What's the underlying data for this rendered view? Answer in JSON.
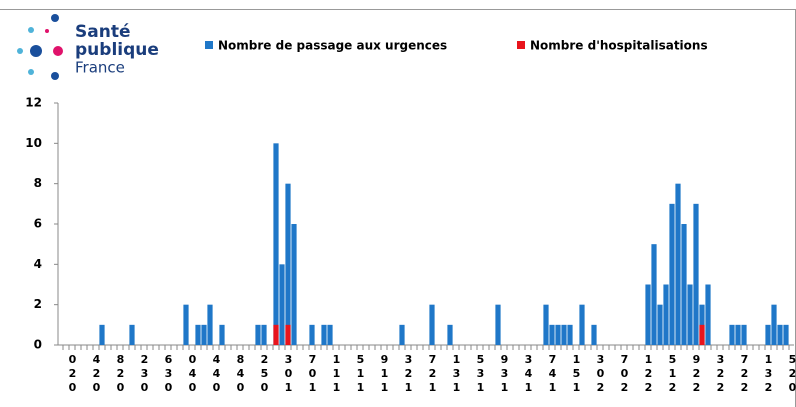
{
  "logo": {
    "line1": "Santé",
    "line2": "publique",
    "line3": "France"
  },
  "chart_data": {
    "type": "bar",
    "overlay": true,
    "categories": [
      null,
      "020",
      null,
      null,
      null,
      "420",
      null,
      null,
      null,
      "820",
      null,
      null,
      null,
      "230",
      null,
      null,
      null,
      "630",
      null,
      null,
      null,
      "040",
      null,
      null,
      null,
      "440",
      null,
      null,
      null,
      "840",
      null,
      null,
      null,
      "250",
      null,
      null,
      null,
      "301",
      null,
      null,
      null,
      "701",
      null,
      null,
      null,
      "111",
      null,
      null,
      null,
      "511",
      null,
      null,
      null,
      "911",
      null,
      null,
      null,
      "321",
      null,
      null,
      null,
      "721",
      null,
      null,
      null,
      "131",
      null,
      null,
      null,
      "531",
      null,
      null,
      null,
      "931",
      null,
      null,
      null,
      "341",
      null,
      null,
      null,
      "741",
      null,
      null,
      null,
      "151",
      null,
      null,
      null,
      "302",
      null,
      null,
      null,
      "702",
      null,
      null,
      null,
      "122",
      null,
      null,
      null,
      "512",
      null,
      null,
      null,
      "922",
      null,
      null,
      null,
      "322",
      null,
      null,
      null,
      "722",
      null,
      null,
      null,
      "132",
      null,
      null,
      null,
      "520"
    ],
    "series": [
      {
        "name": "Nombre de passage aux urgences",
        "color": "#1f77c8",
        "values": [
          0,
          0,
          0,
          0,
          0,
          0,
          1,
          0,
          0,
          0,
          0,
          1,
          0,
          0,
          0,
          0,
          0,
          0,
          0,
          0,
          2,
          0,
          1,
          1,
          2,
          0,
          1,
          0,
          0,
          0,
          0,
          0,
          1,
          1,
          0,
          10,
          4,
          8,
          6,
          0,
          0,
          1,
          0,
          1,
          1,
          0,
          0,
          0,
          0,
          0,
          0,
          0,
          0,
          0,
          0,
          0,
          1,
          0,
          0,
          0,
          0,
          2,
          0,
          0,
          1,
          0,
          0,
          0,
          0,
          0,
          0,
          0,
          2,
          0,
          0,
          0,
          0,
          0,
          0,
          0,
          2,
          1,
          1,
          1,
          1,
          0,
          2,
          0,
          1,
          0,
          0,
          0,
          0,
          0,
          0,
          0,
          0,
          3,
          5,
          2,
          3,
          7,
          8,
          6,
          3,
          7,
          2,
          3,
          0,
          0,
          0,
          1,
          1,
          1,
          0,
          0,
          0,
          1,
          2,
          1,
          1,
          0
        ]
      },
      {
        "name": "Nombre d'hospitalisations",
        "color": "#e8141c",
        "values": [
          0,
          0,
          0,
          0,
          0,
          0,
          0,
          0,
          0,
          0,
          0,
          0,
          0,
          0,
          0,
          0,
          0,
          0,
          0,
          0,
          0,
          0,
          0,
          0,
          0,
          0,
          0,
          0,
          0,
          0,
          0,
          0,
          0,
          0,
          0,
          1,
          0,
          1,
          0,
          0,
          0,
          0,
          0,
          0,
          0,
          0,
          0,
          0,
          0,
          0,
          0,
          0,
          0,
          0,
          0,
          0,
          0,
          0,
          0,
          0,
          0,
          0,
          0,
          0,
          0,
          0,
          0,
          0,
          0,
          0,
          0,
          0,
          0,
          0,
          0,
          0,
          0,
          0,
          0,
          0,
          0,
          0,
          0,
          0,
          0,
          0,
          0,
          0,
          0,
          0,
          0,
          0,
          0,
          0,
          0,
          0,
          0,
          0,
          0,
          0,
          0,
          0,
          0,
          0,
          0,
          0,
          1,
          0,
          0,
          0,
          0,
          0,
          0,
          0,
          0,
          0,
          0,
          0,
          0,
          0,
          0,
          0
        ]
      }
    ],
    "ylim": [
      0,
      12
    ],
    "yticks": [
      0,
      2,
      4,
      6,
      8,
      10,
      12
    ]
  }
}
